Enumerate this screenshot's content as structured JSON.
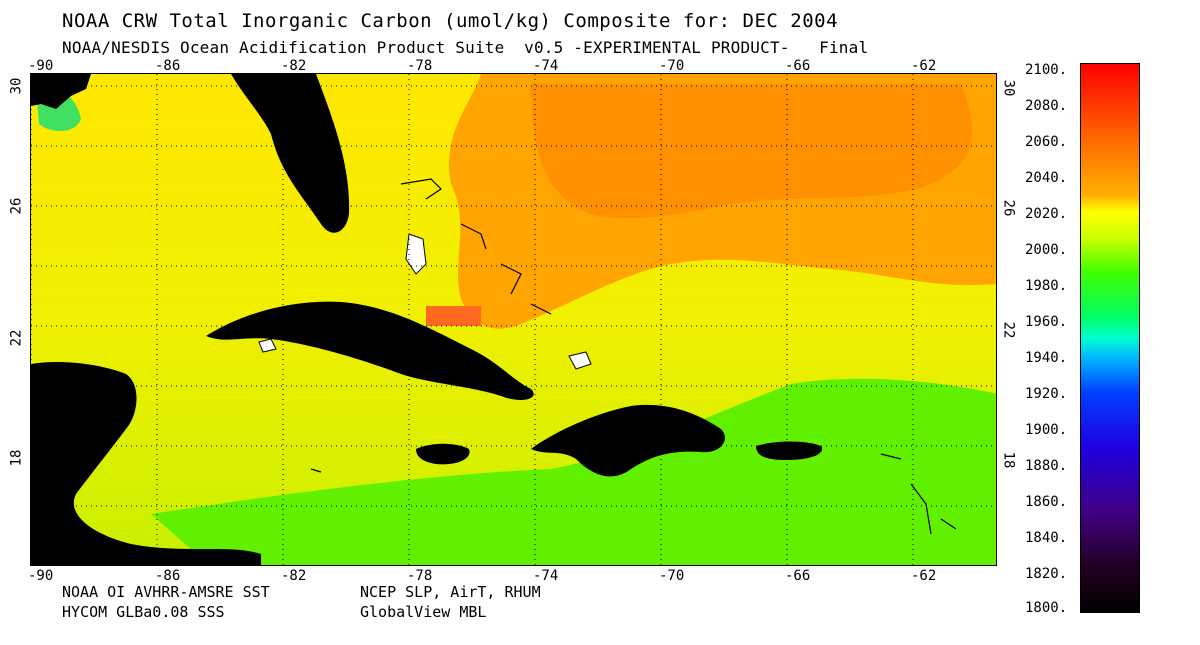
{
  "title": "NOAA CRW Total Inorganic Carbon (umol/kg) Composite for: DEC 2004",
  "subtitle": "NOAA/NESDIS Ocean Acidification Product Suite  v0.5 -EXPERIMENTAL PRODUCT-   Final",
  "lon_ticks": [
    "-90",
    "-86",
    "-82",
    "-78",
    "-74",
    "-70",
    "-66",
    "-62"
  ],
  "lat_ticks": [
    "30",
    "26",
    "22",
    "18"
  ],
  "colorbar": {
    "labels": [
      "2100.",
      "2080.",
      "2060.",
      "2040.",
      "2020.",
      "2000.",
      "1980.",
      "1960.",
      "1940.",
      "1920.",
      "1900.",
      "1880.",
      "1860.",
      "1840.",
      "1820.",
      "1800."
    ],
    "min": 1800,
    "max": 2100
  },
  "credits": {
    "left1": "NOAA OI AVHRR-AMSRE SST",
    "left2": "HYCOM GLBa0.08 SSS",
    "right1": "NCEP SLP, AirT, RHUM",
    "right2": "GlobalView MBL"
  },
  "colors": {
    "land": "#000000",
    "ocean_orange": "#ff9f00",
    "ocean_yellow": "#f4f000",
    "ocean_green": "#5ef000"
  }
}
